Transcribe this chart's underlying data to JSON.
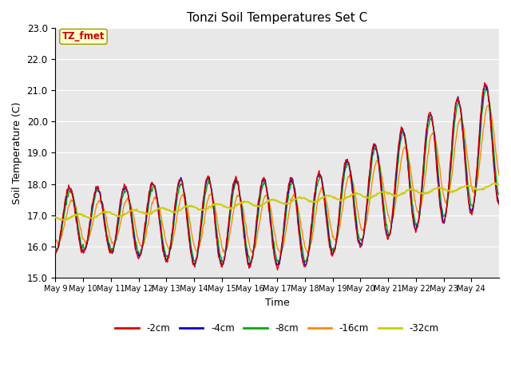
{
  "title": "Tonzi Soil Temperatures Set C",
  "xlabel": "Time",
  "ylabel": "Soil Temperature (C)",
  "ylim": [
    15.0,
    23.0
  ],
  "yticks": [
    15.0,
    16.0,
    17.0,
    18.0,
    19.0,
    20.0,
    21.0,
    22.0,
    23.0
  ],
  "xtick_labels": [
    "May 9",
    "May 10",
    "May 11",
    "May 12",
    "May 13",
    "May 14",
    "May 15",
    "May 16",
    "May 17",
    "May 18",
    "May 19",
    "May 20",
    "May 21",
    "May 22",
    "May 23",
    "May 24"
  ],
  "annotation_text": "TZ_fmet",
  "annotation_color": "#cc0000",
  "annotation_bg": "#ffffcc",
  "annotation_edge": "#999900",
  "colors": {
    "-2cm": "#dd0000",
    "-4cm": "#0000cc",
    "-8cm": "#00aa00",
    "-16cm": "#ff8800",
    "-32cm": "#cccc00"
  },
  "legend_labels": [
    "-2cm",
    "-4cm",
    "-8cm",
    "-16cm",
    "-32cm"
  ],
  "bg_color": "#e8e8e8",
  "n_days": 16,
  "n_per_day": 48,
  "figsize": [
    6.4,
    4.8
  ],
  "dpi": 100
}
